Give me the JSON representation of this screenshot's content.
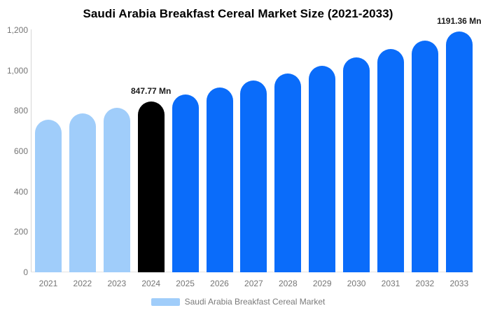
{
  "title": "Saudi Arabia Breakfast Cereal Market Size (2021-2033)",
  "chart_data": {
    "type": "bar",
    "title": "Saudi Arabia Breakfast Cereal Market Size (2021-2033)",
    "categories": [
      "2021",
      "2022",
      "2023",
      "2024",
      "2025",
      "2026",
      "2027",
      "2028",
      "2029",
      "2030",
      "2031",
      "2032",
      "2033"
    ],
    "series": [
      {
        "name": "Saudi Arabia Breakfast Cereal Market",
        "values": [
          756.9,
          786.0,
          816.3,
          847.77,
          880.4,
          914.4,
          949.6,
          986.2,
          1024.2,
          1063.7,
          1104.7,
          1147.3,
          1191.36
        ]
      }
    ],
    "unit": "Mn",
    "xlabel": "",
    "ylabel": "",
    "ylim": [
      0,
      1200
    ],
    "y_ticks": [
      "0",
      "200",
      "400",
      "600",
      "800",
      "1,000",
      "1,200"
    ],
    "grid": false,
    "legend_position": "bottom",
    "bar_styles": [
      "historical",
      "historical",
      "historical",
      "highlight",
      "forecast",
      "forecast",
      "forecast",
      "forecast",
      "forecast",
      "forecast",
      "forecast",
      "forecast",
      "forecast"
    ],
    "colors": {
      "historical": "#a0cdfa",
      "highlight": "#000000",
      "forecast": "#0a6cfa"
    },
    "annotations": [
      {
        "category": "2024",
        "text": "847.77 Mn"
      },
      {
        "category": "2033",
        "text": "1191.36 Mn"
      }
    ]
  },
  "legend": {
    "label": "Saudi Arabia Breakfast Cereal Market",
    "swatch_color": "#a0cdfa"
  }
}
